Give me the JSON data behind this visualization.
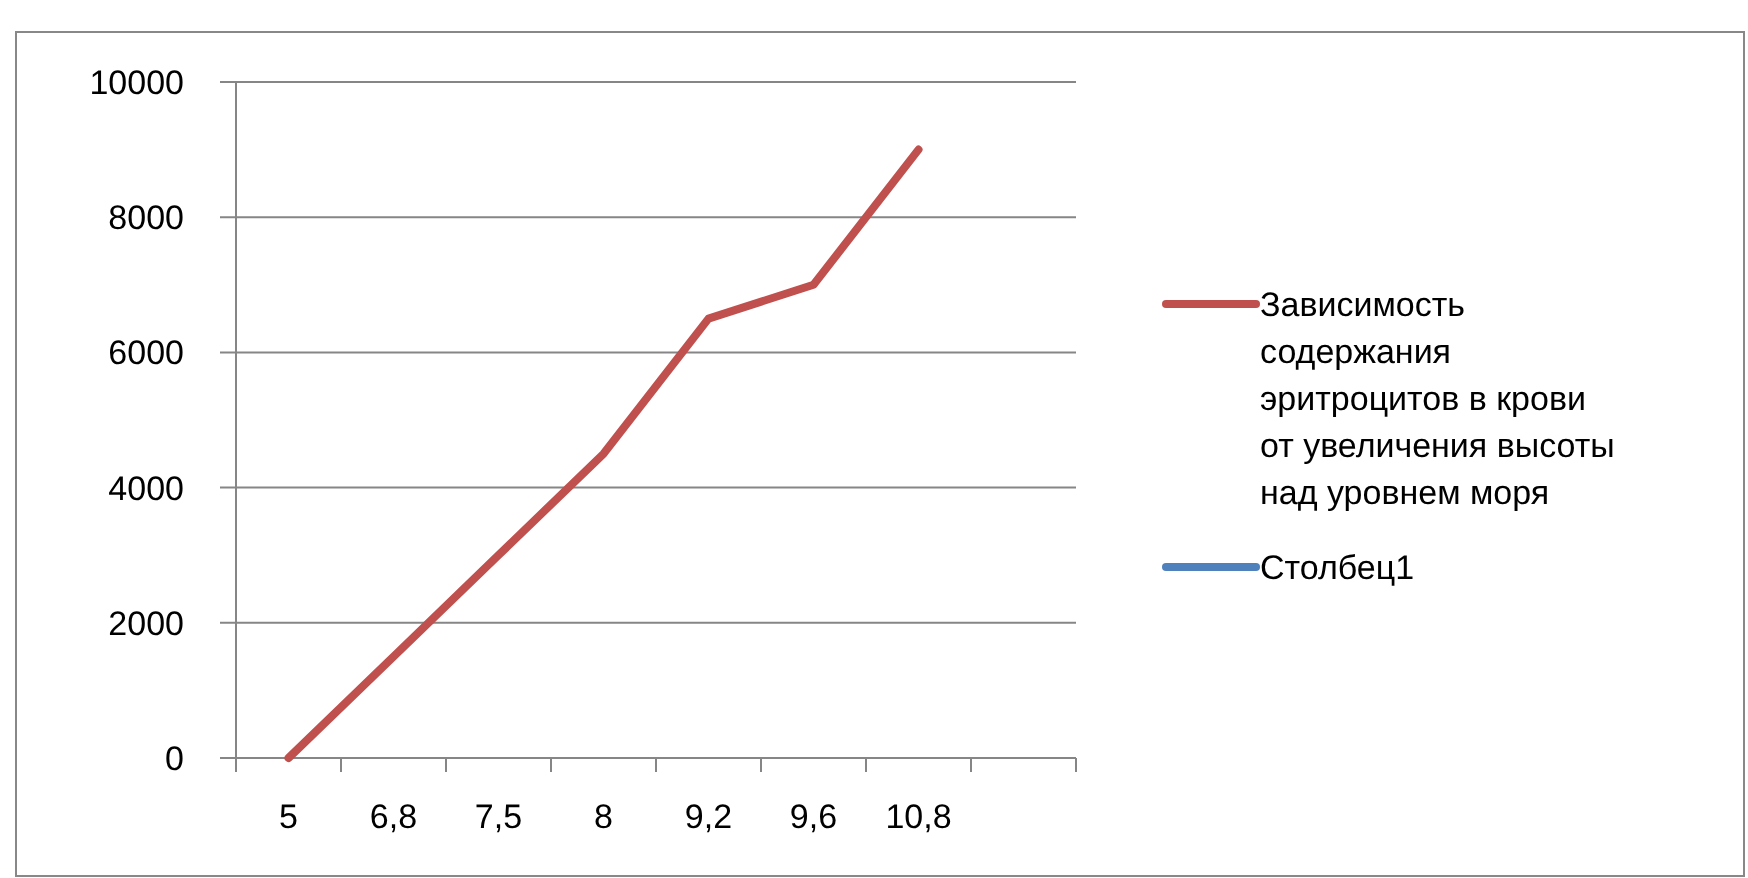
{
  "chart_data": {
    "type": "line",
    "categories": [
      "5",
      "6,8",
      "7,5",
      "8",
      "9,2",
      "9,6",
      "10,8",
      null
    ],
    "series": [
      {
        "name": "Зависимость содержания эритроцитов в крови от увеличения высоты над уровнем моря",
        "color": "#c0504d",
        "values": [
          0,
          1500,
          3000,
          4500,
          6500,
          7000,
          9000,
          null
        ]
      },
      {
        "name": "Столбец1",
        "color": "#4f81bd",
        "values": [
          null,
          null,
          null,
          null,
          null,
          null,
          null,
          null
        ]
      }
    ],
    "ylim": [
      0,
      10000
    ],
    "yticks": [
      0,
      2000,
      4000,
      6000,
      8000,
      10000
    ],
    "grid": "y",
    "legend": "right"
  }
}
